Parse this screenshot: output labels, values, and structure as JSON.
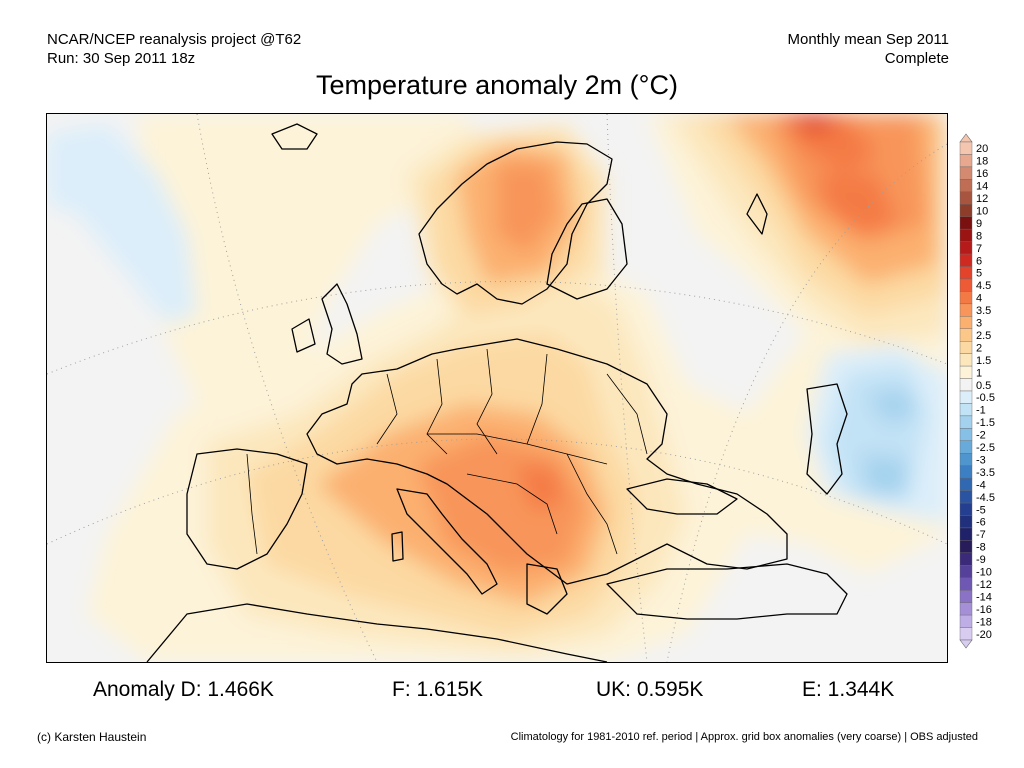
{
  "header": {
    "left_line1": "NCAR/NCEP reanalysis project @T62",
    "left_line2": "Run: 30 Sep 2011 18z",
    "right_line1": "Monthly mean Sep 2011",
    "right_line2": "Complete"
  },
  "title": "Temperature anomaly 2m (°C)",
  "legend": {
    "labels": [
      "20",
      "18",
      "16",
      "14",
      "12",
      "10",
      "9",
      "8",
      "7",
      "6",
      "5",
      "4.5",
      "4",
      "3.5",
      "3",
      "2.5",
      "2",
      "1.5",
      "1",
      "0.5",
      "-0.5",
      "-1",
      "-1.5",
      "-2",
      "-2.5",
      "-3",
      "-3.5",
      "-4",
      "-4.5",
      "-5",
      "-6",
      "-7",
      "-8",
      "-9",
      "-10",
      "-12",
      "-14",
      "-16",
      "-18",
      "-20"
    ],
    "colors": [
      "#f4c6b0",
      "#e8a890",
      "#d48a70",
      "#bf6e55",
      "#a85540",
      "#8f3d2b",
      "#7a1010",
      "#9a1414",
      "#b51b1b",
      "#cf2a22",
      "#e2432a",
      "#ec5b35",
      "#f47a45",
      "#f8955a",
      "#fbb070",
      "#fcc88a",
      "#fcd9a2",
      "#fce7bd",
      "#fdf3d8",
      "#f3f3f3",
      "#dceefa",
      "#c2e2f5",
      "#a4d2ee",
      "#86c0e6",
      "#68abdb",
      "#4f96cf",
      "#3c7fc2",
      "#3168b2",
      "#2a54a2",
      "#243f90",
      "#20307d",
      "#1f2268",
      "#281c5a",
      "#3b2a7a",
      "#55409a",
      "#6f58b3",
      "#8a72c7",
      "#a590d8",
      "#bfaee6",
      "#d8cdf1"
    ]
  },
  "stats": {
    "d": "Anomaly D: 1.466K",
    "f": "F: 1.615K",
    "uk": "UK: 0.595K",
    "e": "E: 1.344K"
  },
  "footer": {
    "credit": "(c) Karsten Haustein",
    "note": "Climatology for 1981-2010 ref. period | Approx. grid box anomalies (very coarse) | OBS adjusted"
  }
}
